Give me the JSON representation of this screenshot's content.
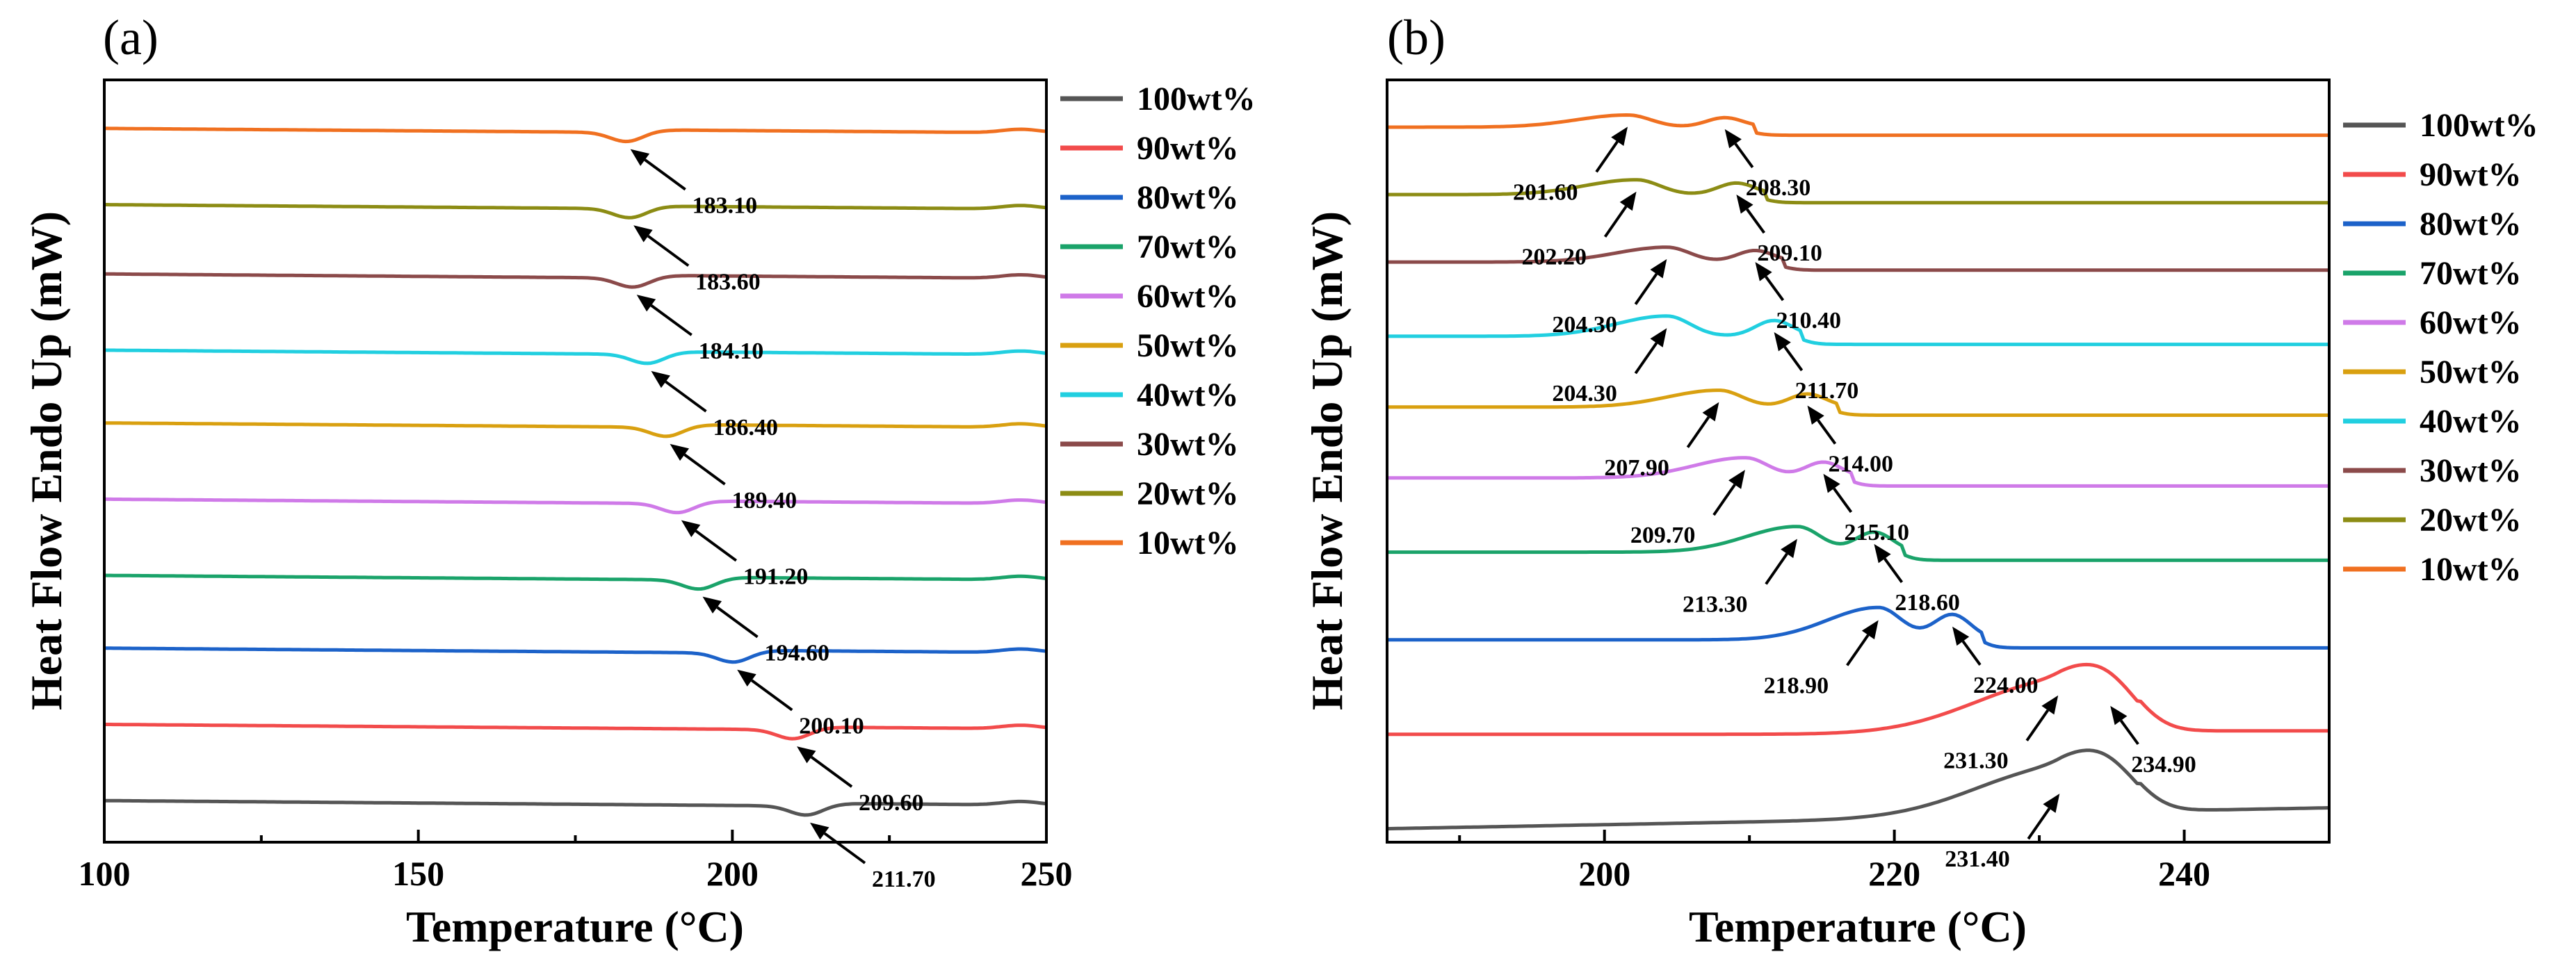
{
  "chart_data": [
    {
      "id": "a",
      "type": "line",
      "panel_label": "(a)",
      "xlabel": "Temperature (°C)",
      "ylabel": "Heat Flow Endo Up (mW)",
      "xlim": [
        100,
        250
      ],
      "xticks": [
        100,
        150,
        200,
        250
      ],
      "xtick_labels": [
        "100",
        "150",
        "200",
        "250"
      ],
      "show_yticks": false,
      "legend_position": "right",
      "series": [
        {
          "name": "100wt%",
          "color": "#555555",
          "offset": 0.6,
          "dip": 211.7,
          "label": "211.70"
        },
        {
          "name": "90wt%",
          "color": "#f24b4b",
          "offset": 1.7,
          "dip": 209.6,
          "label": "209.60"
        },
        {
          "name": "80wt%",
          "color": "#1c62c9",
          "offset": 2.8,
          "dip": 200.1,
          "label": "200.10"
        },
        {
          "name": "70wt%",
          "color": "#1aa36a",
          "offset": 3.85,
          "dip": 194.6,
          "label": "194.60"
        },
        {
          "name": "60wt%",
          "color": "#cf7ae8",
          "offset": 4.95,
          "dip": 191.2,
          "label": "191.20"
        },
        {
          "name": "50wt%",
          "color": "#d9a010",
          "offset": 6.05,
          "dip": 189.4,
          "label": "189.40"
        },
        {
          "name": "40wt%",
          "color": "#21cfe0",
          "offset": 7.1,
          "dip": 186.4,
          "label": "186.40"
        },
        {
          "name": "30wt%",
          "color": "#8b4a4a",
          "offset": 8.2,
          "dip": 184.1,
          "label": "184.10"
        },
        {
          "name": "20wt%",
          "color": "#8c8c14",
          "offset": 9.2,
          "dip": 183.6,
          "label": "183.60"
        },
        {
          "name": "10wt%",
          "color": "#f07020",
          "offset": 10.3,
          "dip": 183.1,
          "label": "183.10"
        }
      ]
    },
    {
      "id": "b",
      "type": "line",
      "panel_label": "(b)",
      "xlabel": "Temperature (°C)",
      "ylabel": "Heat Flow Endo Up (mW)",
      "xlim": [
        185,
        250
      ],
      "xticks": [
        200,
        220,
        240
      ],
      "xtick_labels": [
        "200",
        "220",
        "240"
      ],
      "show_yticks": false,
      "legend_position": "right",
      "series": [
        {
          "name": "100wt%",
          "color": "#555555",
          "offset": 0.2,
          "peaks": [
            231.4,
            234.9
          ],
          "labels": [
            "231.40"
          ]
        },
        {
          "name": "90wt%",
          "color": "#f24b4b",
          "offset": 1.6,
          "peaks": [
            231.3,
            234.9
          ],
          "labels": [
            "231.30",
            "234.90"
          ]
        },
        {
          "name": "80wt%",
          "color": "#1c62c9",
          "offset": 3.0,
          "peaks": [
            218.9,
            224.0
          ],
          "labels": [
            "218.90",
            "224.00"
          ]
        },
        {
          "name": "70wt%",
          "color": "#1aa36a",
          "offset": 4.3,
          "peaks": [
            213.3,
            218.6
          ],
          "labels": [
            "213.30",
            "218.60"
          ]
        },
        {
          "name": "60wt%",
          "color": "#cf7ae8",
          "offset": 5.4,
          "peaks": [
            209.7,
            215.1
          ],
          "labels": [
            "209.70",
            "215.10"
          ]
        },
        {
          "name": "50wt%",
          "color": "#d9a010",
          "offset": 6.45,
          "peaks": [
            207.9,
            214.0
          ],
          "labels": [
            "207.90",
            "214.00"
          ]
        },
        {
          "name": "40wt%",
          "color": "#21cfe0",
          "offset": 7.5,
          "peaks": [
            204.3,
            211.7
          ],
          "labels": [
            "204.30",
            "211.70"
          ]
        },
        {
          "name": "30wt%",
          "color": "#8b4a4a",
          "offset": 8.6,
          "peaks": [
            204.3,
            210.4
          ],
          "labels": [
            "204.30",
            "210.40"
          ]
        },
        {
          "name": "20wt%",
          "color": "#8c8c14",
          "offset": 9.6,
          "peaks": [
            202.2,
            209.1
          ],
          "labels": [
            "202.20",
            "209.10"
          ]
        },
        {
          "name": "10wt%",
          "color": "#f07020",
          "offset": 10.6,
          "peaks": [
            201.6,
            208.3
          ],
          "labels": [
            "201.60",
            "208.30"
          ]
        }
      ]
    }
  ]
}
